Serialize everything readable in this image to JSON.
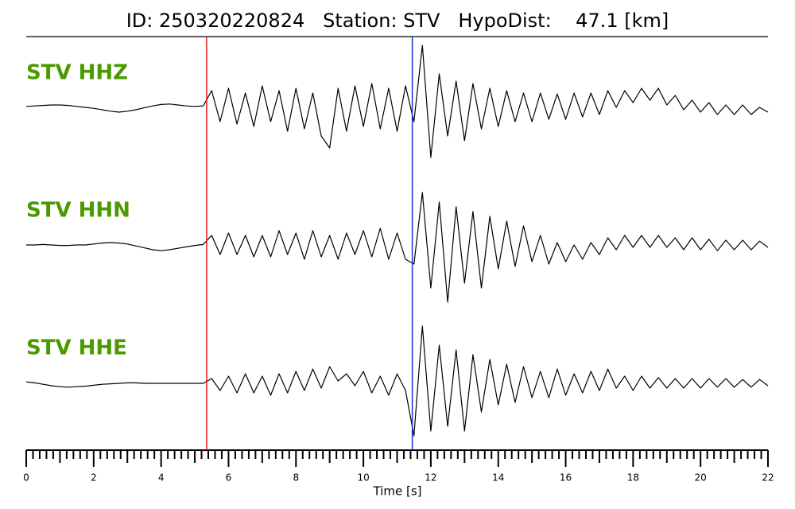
{
  "chart_data": {
    "type": "line",
    "title": "ID: 250320220824   Station: STV   HypoDist:    47.1 [km]",
    "xlabel": "Time [s]",
    "xlim": [
      0,
      22
    ],
    "xticks": [
      0,
      2,
      4,
      6,
      8,
      10,
      12,
      14,
      16,
      18,
      20,
      22
    ],
    "markers": [
      {
        "x": 5.35,
        "color": "#e0201b"
      },
      {
        "x": 11.45,
        "color": "#1f2fd0"
      }
    ],
    "x": [
      0,
      0.25,
      0.5,
      0.75,
      1,
      1.25,
      1.5,
      1.75,
      2,
      2.25,
      2.5,
      2.75,
      3,
      3.25,
      3.5,
      3.75,
      4,
      4.25,
      4.5,
      4.75,
      5,
      5.25,
      5.5,
      5.75,
      6,
      6.25,
      6.5,
      6.75,
      7,
      7.25,
      7.5,
      7.75,
      8,
      8.25,
      8.5,
      8.75,
      9,
      9.25,
      9.5,
      9.75,
      10,
      10.25,
      10.5,
      10.75,
      11,
      11.25,
      11.5,
      11.75,
      12,
      12.25,
      12.5,
      12.75,
      13,
      13.25,
      13.5,
      13.75,
      14,
      14.25,
      14.5,
      14.75,
      15,
      15.25,
      15.5,
      15.75,
      16,
      16.25,
      16.5,
      16.75,
      17,
      17.25,
      17.5,
      17.75,
      18,
      18.25,
      18.5,
      18.75,
      19,
      19.25,
      19.5,
      19.75,
      20,
      20.25,
      20.5,
      20.75,
      21,
      21.25,
      21.5,
      21.75,
      22
    ],
    "series": [
      {
        "name": "STV HHZ",
        "color": "#000000",
        "values": [
          0.02,
          0.03,
          0.04,
          0.05,
          0.05,
          0.04,
          0.02,
          0,
          -0.02,
          -0.05,
          -0.08,
          -0.1,
          -0.08,
          -0.05,
          -0.01,
          0.03,
          0.06,
          0.07,
          0.05,
          0.03,
          0.02,
          0.03,
          0.35,
          -0.3,
          0.4,
          -0.35,
          0.3,
          -0.4,
          0.45,
          -0.3,
          0.35,
          -0.5,
          0.4,
          -0.45,
          0.3,
          -0.6,
          -0.85,
          0.4,
          -0.5,
          0.45,
          -0.4,
          0.5,
          -0.45,
          0.4,
          -0.5,
          0.45,
          -0.3,
          1.3,
          -1.05,
          0.7,
          -0.6,
          0.55,
          -0.7,
          0.5,
          -0.45,
          0.4,
          -0.4,
          0.35,
          -0.3,
          0.3,
          -0.3,
          0.3,
          -0.25,
          0.28,
          -0.25,
          0.3,
          -0.2,
          0.3,
          -0.15,
          0.35,
          0,
          0.35,
          0.1,
          0.4,
          0.15,
          0.4,
          0.05,
          0.25,
          -0.05,
          0.15,
          -0.1,
          0.1,
          -0.15,
          0.05,
          -0.15,
          0.05,
          -0.15,
          0,
          -0.1
        ]
      },
      {
        "name": "STV HHN",
        "color": "#000000",
        "values": [
          0,
          0,
          0.01,
          0,
          -0.01,
          -0.01,
          0,
          0,
          0.02,
          0.04,
          0.05,
          0.04,
          0.02,
          -0.02,
          -0.06,
          -0.1,
          -0.12,
          -0.1,
          -0.07,
          -0.04,
          -0.01,
          0.01,
          0.2,
          -0.2,
          0.25,
          -0.2,
          0.2,
          -0.25,
          0.2,
          -0.25,
          0.3,
          -0.2,
          0.25,
          -0.3,
          0.3,
          -0.25,
          0.2,
          -0.3,
          0.25,
          -0.2,
          0.3,
          -0.25,
          0.35,
          -0.3,
          0.25,
          -0.3,
          -0.4,
          1.1,
          -0.9,
          0.9,
          -1.2,
          0.8,
          -0.8,
          0.7,
          -0.9,
          0.6,
          -0.5,
          0.5,
          -0.45,
          0.4,
          -0.35,
          0.2,
          -0.4,
          0.05,
          -0.35,
          0,
          -0.3,
          0.05,
          -0.2,
          0.15,
          -0.1,
          0.2,
          -0.05,
          0.2,
          -0.05,
          0.2,
          -0.05,
          0.15,
          -0.1,
          0.15,
          -0.1,
          0.12,
          -0.12,
          0.1,
          -0.1,
          0.1,
          -0.1,
          0.08,
          -0.05
        ]
      },
      {
        "name": "STV HHE",
        "color": "#000000",
        "values": [
          0.03,
          0.01,
          -0.02,
          -0.05,
          -0.07,
          -0.08,
          -0.07,
          -0.06,
          -0.04,
          -0.02,
          -0.01,
          0,
          0.01,
          0.01,
          0,
          0,
          0,
          0,
          0,
          0,
          0,
          0,
          0.1,
          -0.15,
          0.15,
          -0.2,
          0.2,
          -0.2,
          0.15,
          -0.25,
          0.2,
          -0.2,
          0.25,
          -0.15,
          0.3,
          -0.1,
          0.35,
          0.05,
          0.2,
          -0.05,
          0.25,
          -0.2,
          0.15,
          -0.25,
          0.2,
          -0.15,
          -1.1,
          1.2,
          -1.0,
          0.8,
          -0.9,
          0.7,
          -1.0,
          0.6,
          -0.6,
          0.5,
          -0.45,
          0.4,
          -0.4,
          0.35,
          -0.3,
          0.25,
          -0.3,
          0.3,
          -0.25,
          0.2,
          -0.2,
          0.25,
          -0.15,
          0.3,
          -0.1,
          0.15,
          -0.15,
          0.15,
          -0.1,
          0.12,
          -0.1,
          0.1,
          -0.1,
          0.1,
          -0.1,
          0.1,
          -0.08,
          0.1,
          -0.08,
          0.08,
          -0.08,
          0.08,
          -0.05
        ]
      }
    ]
  }
}
